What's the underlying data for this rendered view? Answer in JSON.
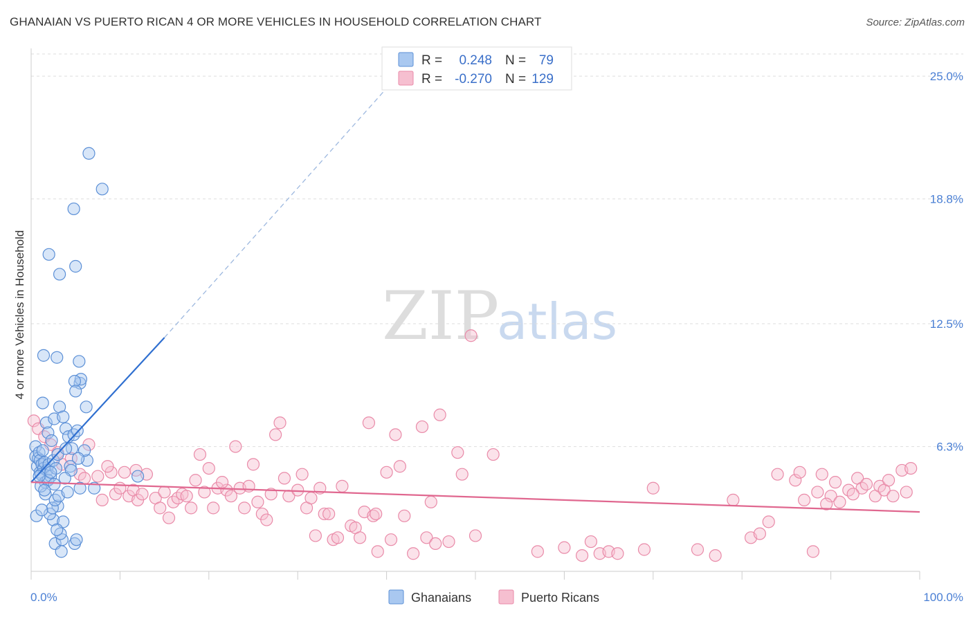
{
  "header": {
    "title": "GHANAIAN VS PUERTO RICAN 4 OR MORE VEHICLES IN HOUSEHOLD CORRELATION CHART",
    "source": "Source: ZipAtlas.com"
  },
  "legend": {
    "r_label": "R =",
    "n_label": "N =",
    "rows": [
      {
        "r": "0.248",
        "n": "79"
      },
      {
        "r": "-0.270",
        "n": "129"
      }
    ]
  },
  "watermark": {
    "zip": "ZIP",
    "atlas": "atlas"
  },
  "colors": {
    "blue_fill": "#a9c8f0",
    "blue_stroke": "#5b8fd6",
    "blue_line": "#2f6fd0",
    "pink_fill": "#f6bfd0",
    "pink_stroke": "#e98aa8",
    "pink_line": "#e0678f"
  },
  "chart_data": {
    "type": "scatter",
    "title": "GHANAIAN VS PUERTO RICAN 4 OR MORE VEHICLES IN HOUSEHOLD CORRELATION CHART",
    "xlabel": "",
    "ylabel": "4 or more Vehicles in Household",
    "xlim": [
      0,
      100
    ],
    "ylim": [
      0,
      26.4
    ],
    "x_ticks": [
      "0.0%",
      "100.0%"
    ],
    "y_ticks": [
      {
        "value": 6.3,
        "label": "6.3%"
      },
      {
        "value": 12.5,
        "label": "12.5%"
      },
      {
        "value": 18.8,
        "label": "18.8%"
      },
      {
        "value": 25.0,
        "label": "25.0%"
      }
    ],
    "grid": true,
    "legend_position": "bottom",
    "series": [
      {
        "name": "Ghanaians",
        "r": 0.248,
        "n": 79,
        "trend": {
          "x": [
            0,
            15
          ],
          "y": [
            4.5,
            11.8
          ],
          "dashed_to": [
            43,
            25.9
          ]
        },
        "points": [
          [
            0.5,
            6.3
          ],
          [
            0.5,
            5.8
          ],
          [
            0.7,
            5.3
          ],
          [
            0.8,
            5.7
          ],
          [
            0.9,
            6.0
          ],
          [
            1.0,
            5.0
          ],
          [
            1.0,
            5.6
          ],
          [
            1.2,
            5.4
          ],
          [
            1.3,
            6.1
          ],
          [
            1.4,
            5.2
          ],
          [
            0.6,
            2.8
          ],
          [
            1.1,
            4.9
          ],
          [
            1.5,
            5.5
          ],
          [
            1.6,
            4.5
          ],
          [
            1.8,
            5.1
          ],
          [
            2.0,
            5.4
          ],
          [
            2.2,
            4.8
          ],
          [
            2.5,
            5.6
          ],
          [
            2.8,
            5.2
          ],
          [
            3.0,
            5.9
          ],
          [
            1.3,
            8.5
          ],
          [
            1.7,
            7.5
          ],
          [
            1.9,
            7.0
          ],
          [
            2.3,
            6.6
          ],
          [
            2.6,
            7.7
          ],
          [
            3.2,
            8.3
          ],
          [
            3.6,
            7.8
          ],
          [
            3.9,
            7.2
          ],
          [
            4.2,
            6.8
          ],
          [
            4.6,
            6.2
          ],
          [
            1.4,
            10.9
          ],
          [
            2.9,
            10.8
          ],
          [
            5.4,
            10.6
          ],
          [
            5.5,
            9.5
          ],
          [
            5.6,
            9.7
          ],
          [
            4.9,
            9.6
          ],
          [
            6.2,
            8.3
          ],
          [
            5.0,
            9.1
          ],
          [
            4.8,
            6.9
          ],
          [
            5.2,
            7.1
          ],
          [
            2.0,
            16.0
          ],
          [
            3.2,
            15.0
          ],
          [
            5.0,
            15.4
          ],
          [
            4.8,
            18.3
          ],
          [
            6.5,
            21.1
          ],
          [
            8.0,
            19.3
          ],
          [
            6.3,
            5.6
          ],
          [
            6.0,
            6.1
          ],
          [
            5.3,
            5.7
          ],
          [
            4.4,
            5.3
          ],
          [
            2.5,
            2.6
          ],
          [
            3.0,
            3.3
          ],
          [
            2.1,
            2.9
          ],
          [
            3.6,
            2.5
          ],
          [
            1.6,
            3.9
          ],
          [
            2.4,
            3.2
          ],
          [
            2.7,
            1.4
          ],
          [
            3.5,
            1.6
          ],
          [
            3.3,
            1.9
          ],
          [
            2.9,
            2.1
          ],
          [
            4.9,
            1.4
          ],
          [
            5.1,
            1.6
          ],
          [
            3.4,
            1.0
          ],
          [
            5.5,
            4.2
          ],
          [
            7.1,
            4.2
          ],
          [
            12.0,
            4.8
          ],
          [
            2.7,
            3.6
          ],
          [
            1.2,
            3.1
          ],
          [
            3.9,
            6.2
          ],
          [
            4.5,
            5.1
          ],
          [
            1.1,
            4.3
          ],
          [
            3.1,
            3.8
          ],
          [
            1.9,
            4.6
          ],
          [
            2.2,
            5.0
          ],
          [
            0.9,
            4.8
          ],
          [
            1.5,
            4.1
          ],
          [
            2.6,
            4.4
          ],
          [
            3.8,
            4.7
          ],
          [
            4.1,
            4.0
          ]
        ]
      },
      {
        "name": "Puerto Ricans",
        "r": -0.27,
        "n": 129,
        "trend": {
          "x": [
            0,
            100
          ],
          "y": [
            4.5,
            3.0
          ]
        },
        "points": [
          [
            0.3,
            7.6
          ],
          [
            0.8,
            7.2
          ],
          [
            1.5,
            6.8
          ],
          [
            2.2,
            6.4
          ],
          [
            3.0,
            6.0
          ],
          [
            3.5,
            5.4
          ],
          [
            4.5,
            5.7
          ],
          [
            5.5,
            4.9
          ],
          [
            6.0,
            4.7
          ],
          [
            6.5,
            6.4
          ],
          [
            7.5,
            4.8
          ],
          [
            8.0,
            3.6
          ],
          [
            9.0,
            5.0
          ],
          [
            9.5,
            3.9
          ],
          [
            10.0,
            4.2
          ],
          [
            10.5,
            5.0
          ],
          [
            11.0,
            3.8
          ],
          [
            11.5,
            4.1
          ],
          [
            12.0,
            3.6
          ],
          [
            12.5,
            3.9
          ],
          [
            13.0,
            4.9
          ],
          [
            14.0,
            3.7
          ],
          [
            14.5,
            3.2
          ],
          [
            15.0,
            4.0
          ],
          [
            15.5,
            2.7
          ],
          [
            16.0,
            3.5
          ],
          [
            16.5,
            3.7
          ],
          [
            17.0,
            3.9
          ],
          [
            17.5,
            3.8
          ],
          [
            18.0,
            3.2
          ],
          [
            18.5,
            4.6
          ],
          [
            19.0,
            5.9
          ],
          [
            20.0,
            5.2
          ],
          [
            20.5,
            3.2
          ],
          [
            21.0,
            4.2
          ],
          [
            22.0,
            4.1
          ],
          [
            22.5,
            3.8
          ],
          [
            23.0,
            6.3
          ],
          [
            23.5,
            4.2
          ],
          [
            24.0,
            3.2
          ],
          [
            24.5,
            4.3
          ],
          [
            25.0,
            5.4
          ],
          [
            25.5,
            3.5
          ],
          [
            26.0,
            2.9
          ],
          [
            26.5,
            2.6
          ],
          [
            27.0,
            3.9
          ],
          [
            27.5,
            6.9
          ],
          [
            28.0,
            7.5
          ],
          [
            28.5,
            4.7
          ],
          [
            29.0,
            3.8
          ],
          [
            30.0,
            4.1
          ],
          [
            30.5,
            4.9
          ],
          [
            31.0,
            3.2
          ],
          [
            31.5,
            3.7
          ],
          [
            32.0,
            1.8
          ],
          [
            32.5,
            4.2
          ],
          [
            33.0,
            2.9
          ],
          [
            33.5,
            2.9
          ],
          [
            34.0,
            1.6
          ],
          [
            34.5,
            1.7
          ],
          [
            35.0,
            4.3
          ],
          [
            36.0,
            2.3
          ],
          [
            36.5,
            2.2
          ],
          [
            37.0,
            1.7
          ],
          [
            37.5,
            3.0
          ],
          [
            38.0,
            7.5
          ],
          [
            38.5,
            2.8
          ],
          [
            38.8,
            2.9
          ],
          [
            39.0,
            1.0
          ],
          [
            40.0,
            5.0
          ],
          [
            40.5,
            1.6
          ],
          [
            41.0,
            6.9
          ],
          [
            41.5,
            5.3
          ],
          [
            42.0,
            2.8
          ],
          [
            43.0,
            0.9
          ],
          [
            44.0,
            7.3
          ],
          [
            44.5,
            1.7
          ],
          [
            45.0,
            3.5
          ],
          [
            45.5,
            1.4
          ],
          [
            46.0,
            7.9
          ],
          [
            47.0,
            1.5
          ],
          [
            48.0,
            6.0
          ],
          [
            48.5,
            4.9
          ],
          [
            50.0,
            1.8
          ],
          [
            52.0,
            5.9
          ],
          [
            57.0,
            1.0
          ],
          [
            60.0,
            1.2
          ],
          [
            62.0,
            0.8
          ],
          [
            63.0,
            1.5
          ],
          [
            64.0,
            0.9
          ],
          [
            65.0,
            1.0
          ],
          [
            66.0,
            0.9
          ],
          [
            69.0,
            1.1
          ],
          [
            70.0,
            4.2
          ],
          [
            75.0,
            1.1
          ],
          [
            77.0,
            0.8
          ],
          [
            79.0,
            3.6
          ],
          [
            81.0,
            1.7
          ],
          [
            82.0,
            1.9
          ],
          [
            83.0,
            2.5
          ],
          [
            84.0,
            4.9
          ],
          [
            86.0,
            4.6
          ],
          [
            87.0,
            3.6
          ],
          [
            88.0,
            1.0
          ],
          [
            88.5,
            4.0
          ],
          [
            89.0,
            4.9
          ],
          [
            90.0,
            3.8
          ],
          [
            90.5,
            4.5
          ],
          [
            91.0,
            3.5
          ],
          [
            92.0,
            4.1
          ],
          [
            93.0,
            4.7
          ],
          [
            93.5,
            4.2
          ],
          [
            94.0,
            4.4
          ],
          [
            95.0,
            3.8
          ],
          [
            95.5,
            4.3
          ],
          [
            96.0,
            4.1
          ],
          [
            97.0,
            3.8
          ],
          [
            98.0,
            5.1
          ],
          [
            99.0,
            5.2
          ],
          [
            98.5,
            4.0
          ],
          [
            86.5,
            5.0
          ],
          [
            92.5,
            3.9
          ],
          [
            96.5,
            4.6
          ],
          [
            89.5,
            3.4
          ],
          [
            21.5,
            4.5
          ],
          [
            19.5,
            4.0
          ],
          [
            11.8,
            5.1
          ],
          [
            8.6,
            5.3
          ],
          [
            49.5,
            11.9
          ]
        ]
      }
    ]
  },
  "bottom_legend": [
    {
      "label": "Ghanaians"
    },
    {
      "label": "Puerto Ricans"
    }
  ]
}
